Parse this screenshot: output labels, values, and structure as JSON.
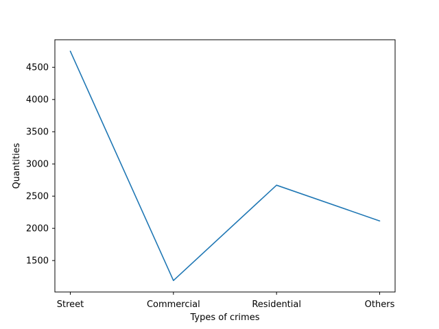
{
  "chart_data": {
    "type": "line",
    "title": "",
    "xlabel": "Types of crimes",
    "ylabel": "Quantities",
    "categories": [
      "Street",
      "Commercial",
      "Residential",
      "Others"
    ],
    "series": [
      {
        "values": [
          4750,
          1190,
          2670,
          2115
        ],
        "color": "#1f77b4"
      }
    ],
    "yticks": [
      1500,
      2000,
      2500,
      3000,
      3500,
      4000,
      4500
    ],
    "ylim": [
      1012,
      4928
    ],
    "grid": false,
    "legend": "none"
  }
}
